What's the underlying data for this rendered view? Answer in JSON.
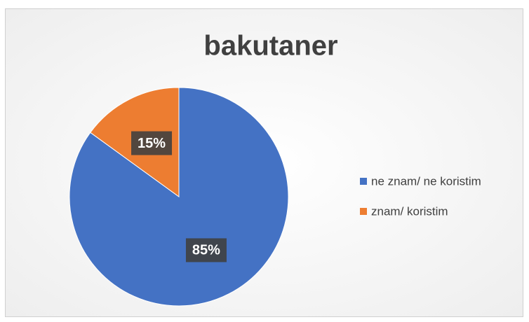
{
  "chart_data": {
    "type": "pie",
    "title": "bakutaner",
    "categories": [
      "ne znam/ ne koristim",
      "znam/ koristim"
    ],
    "values": [
      85,
      15
    ],
    "value_labels": [
      "85%",
      "15%"
    ],
    "colors": [
      "#4472c4",
      "#ed7d31"
    ],
    "legend": "right"
  }
}
